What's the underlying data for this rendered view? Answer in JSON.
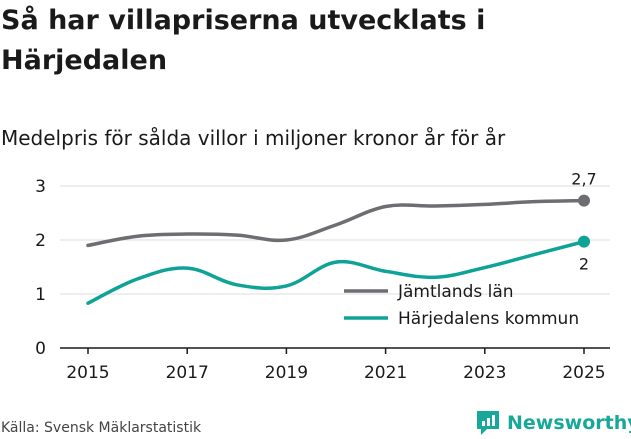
{
  "title": "Så har villapriserna utvecklats i Härjedalen",
  "subtitle": "Medelpris för sålda villor i miljoner kronor år för år",
  "source": "Källa: Svensk Mäklarstatistik",
  "brand": "Newsworthy",
  "colors": {
    "jamtland": "#6e6e72",
    "harjedalen": "#0fa398",
    "grid": "#dcdcdc",
    "axis": "#1a1a1a",
    "brand": "#18a89a"
  },
  "chart_data": {
    "type": "line",
    "title": "Så har villapriserna utvecklats i Härjedalen",
    "subtitle": "Medelpris för sålda villor i miljoner kronor år för år",
    "xlabel": "",
    "ylabel": "",
    "ylim": [
      0,
      3
    ],
    "xlim": [
      2015,
      2025
    ],
    "yticks": [
      0,
      1,
      2,
      3
    ],
    "xticks": [
      2015,
      2017,
      2019,
      2021,
      2023,
      2025
    ],
    "grid": true,
    "legend": "bottom-right inside plot",
    "x": [
      2015,
      2016,
      2017,
      2018,
      2019,
      2020,
      2021,
      2022,
      2023,
      2024,
      2025
    ],
    "series": [
      {
        "name": "Jämtlands län",
        "color": "#6e6e72",
        "values": [
          1.9,
          2.07,
          2.11,
          2.09,
          2.0,
          2.28,
          2.62,
          2.63,
          2.66,
          2.71,
          2.73
        ],
        "end_label": "2,7"
      },
      {
        "name": "Härjedalens kommun",
        "color": "#0fa398",
        "values": [
          0.83,
          1.28,
          1.48,
          1.17,
          1.15,
          1.59,
          1.42,
          1.31,
          1.49,
          1.73,
          1.97
        ],
        "end_label": "2"
      }
    ]
  }
}
